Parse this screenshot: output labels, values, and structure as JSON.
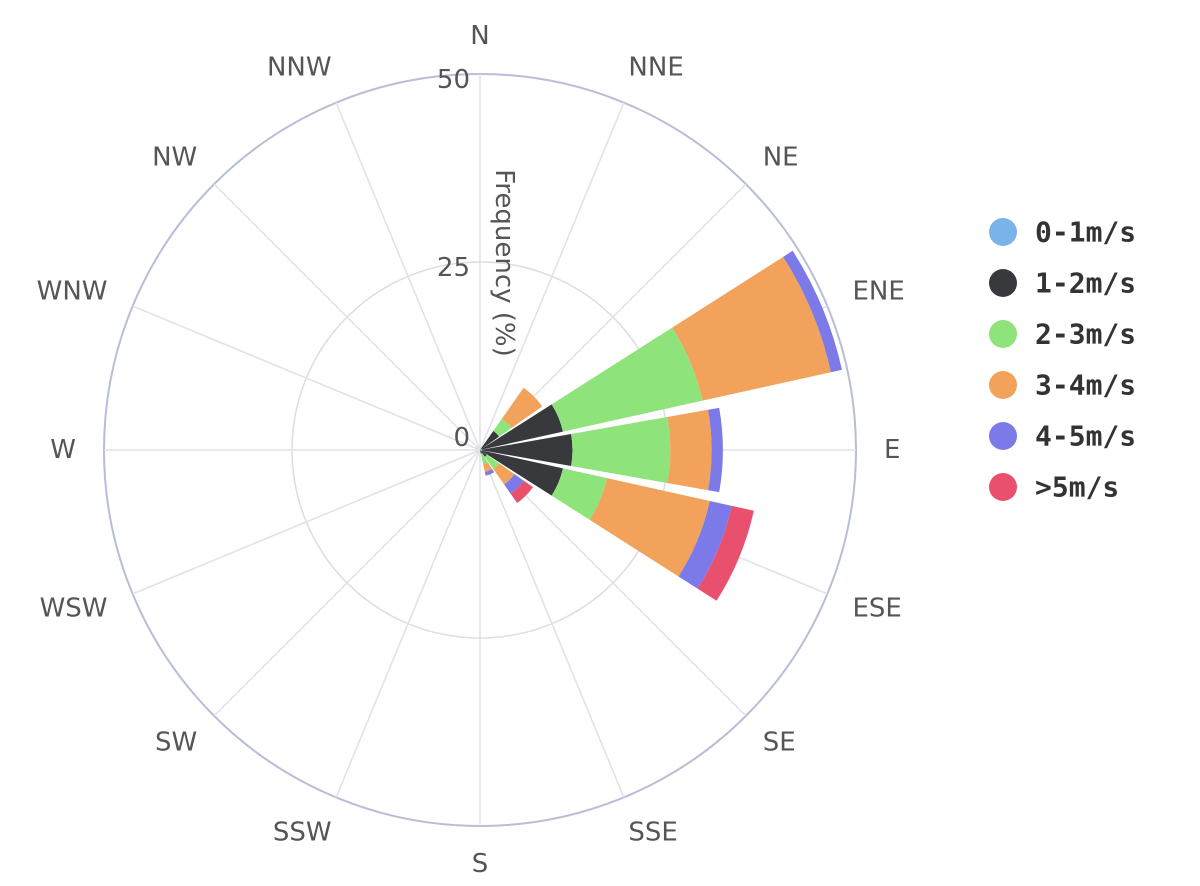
{
  "chart_data": {
    "type": "windrose",
    "directions": [
      "N",
      "NNE",
      "NE",
      "ENE",
      "E",
      "ESE",
      "SE",
      "SSE",
      "S",
      "SSW",
      "SW",
      "WSW",
      "W",
      "WNW",
      "NW",
      "NNW"
    ],
    "radial_axis": {
      "title": "Frequency (%)",
      "range": [
        0,
        50
      ],
      "ticks": [
        0,
        25,
        50
      ],
      "tick_labels": [
        "0",
        "25",
        "50"
      ]
    },
    "grid": true,
    "legend_position": "right",
    "series": [
      {
        "name": "0-1m/s",
        "color": "#7ab3ea",
        "values": [
          0,
          0,
          0.1,
          0.3,
          0.3,
          0.3,
          0.1,
          0,
          0,
          0,
          0,
          0,
          0,
          0,
          0,
          0
        ]
      },
      {
        "name": "1-2m/s",
        "color": "#38393d",
        "values": [
          0,
          0,
          3,
          11,
          12,
          11,
          1,
          0.5,
          0,
          0,
          0,
          0,
          0,
          0,
          0,
          0
        ]
      },
      {
        "name": "2-3m/s",
        "color": "#8ee37a",
        "values": [
          0,
          0,
          2,
          19,
          13,
          6,
          2,
          1.5,
          0,
          0,
          0,
          0,
          0,
          0,
          0,
          0
        ]
      },
      {
        "name": "3-4m/s",
        "color": "#f2a25a",
        "values": [
          0,
          0,
          5,
          17.5,
          5.5,
          14,
          2.5,
          1,
          0,
          0,
          0,
          0,
          0,
          0,
          0,
          0
        ]
      },
      {
        "name": "4-5m/s",
        "color": "#7b7ae8",
        "values": [
          0,
          0,
          0,
          1.5,
          1.5,
          3,
          1.5,
          0.5,
          0,
          0,
          0,
          0,
          0,
          0,
          0,
          0
        ]
      },
      {
        "name": ">5m/s",
        "color": "#e8506e",
        "values": [
          0,
          0,
          0,
          0,
          0,
          3,
          1.5,
          0,
          0,
          0,
          0,
          0,
          0,
          0,
          0,
          0
        ]
      }
    ]
  }
}
